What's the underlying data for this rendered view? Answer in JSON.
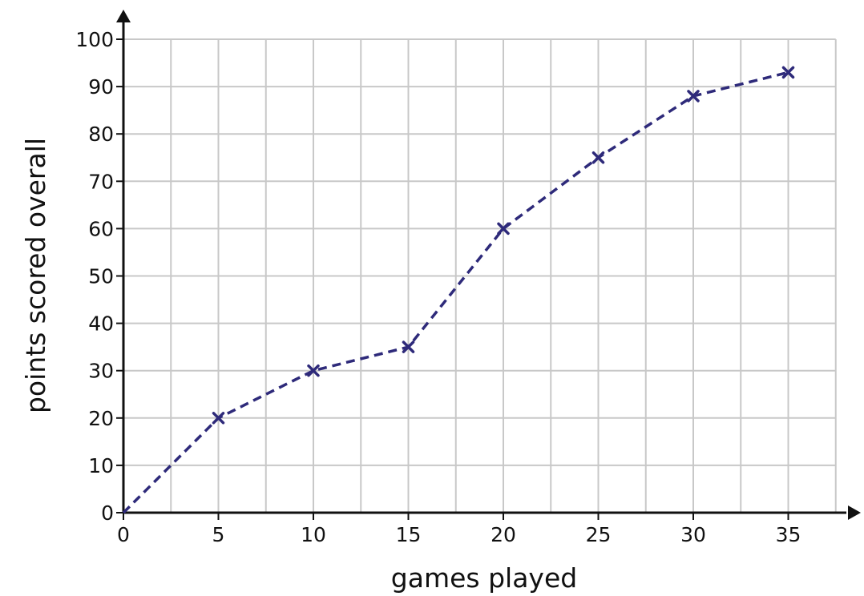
{
  "chart_data": {
    "type": "line",
    "title": "",
    "xlabel": "games played",
    "ylabel": "points scored overall",
    "xlim": [
      0,
      37.5
    ],
    "ylim": [
      0,
      100
    ],
    "x_ticks": [
      0,
      5,
      10,
      15,
      20,
      25,
      30,
      35
    ],
    "y_ticks": [
      0,
      10,
      20,
      30,
      40,
      50,
      60,
      70,
      80,
      90,
      100
    ],
    "grid": true,
    "grid_x_step": 2.5,
    "grid_y_step": 10,
    "line_style": "dashed",
    "marker": "x",
    "series_color": "#2e2a7a",
    "x": [
      0,
      5,
      10,
      15,
      20,
      25,
      30,
      35
    ],
    "series": [
      {
        "values": [
          0,
          20,
          30,
          35,
          60,
          75,
          88,
          93
        ]
      }
    ]
  }
}
